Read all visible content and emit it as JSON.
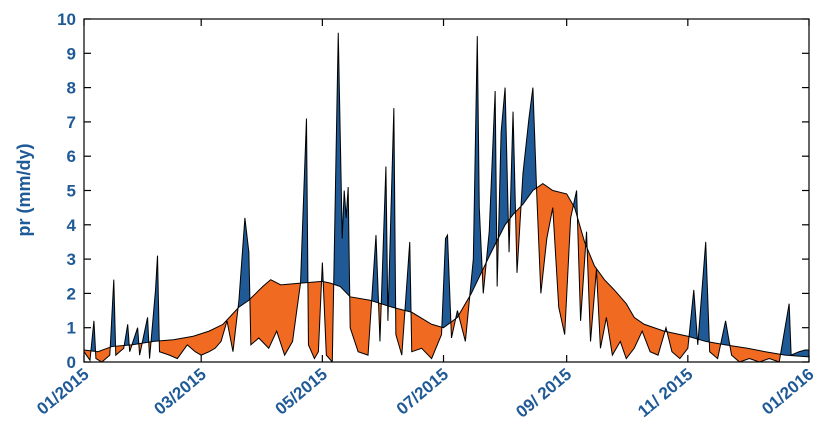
{
  "colors": {
    "above": "#1f5a96",
    "below": "#f06a22",
    "ticks": "#1f5a96",
    "xticks": "#1f5a96",
    "axes": "#000000"
  },
  "chart_data": {
    "type": "area",
    "title": "",
    "xlabel": "",
    "ylabel": "pr (mm/dy)",
    "ylim": [
      0,
      10
    ],
    "yticks": [
      0,
      1,
      2,
      3,
      4,
      5,
      6,
      7,
      8,
      9,
      10
    ],
    "xlim": [
      "2015-01-01",
      "2016-01-01"
    ],
    "xticks": [
      {
        "date": "2015-01-01",
        "label": "01/2015"
      },
      {
        "date": "2015-03-01",
        "label": "03/2015"
      },
      {
        "date": "2015-05-01",
        "label": "05/2015"
      },
      {
        "date": "2015-07-01",
        "label": "07/2015"
      },
      {
        "date": "2015-09-01",
        "label": "09/ 2015"
      },
      {
        "date": "2015-11-01",
        "label": "11/ 2015"
      },
      {
        "date": "2016-01-01",
        "label": "01/2016"
      }
    ],
    "grid": false,
    "series": [
      {
        "role": "climatology",
        "points": [
          [
            "2015-01-01",
            0.35
          ],
          [
            "2015-01-08",
            0.3
          ],
          [
            "2015-01-15",
            0.45
          ],
          [
            "2015-01-25",
            0.5
          ],
          [
            "2015-02-05",
            0.6
          ],
          [
            "2015-02-15",
            0.65
          ],
          [
            "2015-02-25",
            0.75
          ],
          [
            "2015-03-05",
            0.9
          ],
          [
            "2015-03-12",
            1.1
          ],
          [
            "2015-03-20",
            1.6
          ],
          [
            "2015-03-25",
            1.8
          ],
          [
            "2015-04-01",
            2.2
          ],
          [
            "2015-04-05",
            2.4
          ],
          [
            "2015-04-10",
            2.25
          ],
          [
            "2015-04-20",
            2.3
          ],
          [
            "2015-05-01",
            2.35
          ],
          [
            "2015-05-05",
            2.3
          ],
          [
            "2015-05-10",
            2.2
          ],
          [
            "2015-05-15",
            1.9
          ],
          [
            "2015-05-25",
            1.8
          ],
          [
            "2015-06-05",
            1.6
          ],
          [
            "2015-06-15",
            1.45
          ],
          [
            "2015-06-25",
            1.1
          ],
          [
            "2015-07-01",
            1.0
          ],
          [
            "2015-07-08",
            1.3
          ],
          [
            "2015-07-15",
            2.0
          ],
          [
            "2015-07-20",
            2.6
          ],
          [
            "2015-07-25",
            3.2
          ],
          [
            "2015-08-01",
            4.0
          ],
          [
            "2015-08-05",
            4.3
          ],
          [
            "2015-08-10",
            4.6
          ],
          [
            "2015-08-15",
            5.0
          ],
          [
            "2015-08-20",
            5.2
          ],
          [
            "2015-08-25",
            5.0
          ],
          [
            "2015-09-01",
            4.9
          ],
          [
            "2015-09-05",
            4.5
          ],
          [
            "2015-09-10",
            3.5
          ],
          [
            "2015-09-15",
            2.8
          ],
          [
            "2015-09-20",
            2.4
          ],
          [
            "2015-09-25",
            2.1
          ],
          [
            "2015-10-01",
            1.7
          ],
          [
            "2015-10-05",
            1.3
          ],
          [
            "2015-10-10",
            1.1
          ],
          [
            "2015-10-20",
            0.9
          ],
          [
            "2015-11-01",
            0.75
          ],
          [
            "2015-11-10",
            0.6
          ],
          [
            "2015-11-20",
            0.5
          ],
          [
            "2015-12-01",
            0.4
          ],
          [
            "2015-12-10",
            0.3
          ],
          [
            "2015-12-20",
            0.2
          ],
          [
            "2016-01-01",
            0.15
          ]
        ]
      },
      {
        "role": "daily",
        "points": [
          [
            "2015-01-01",
            0.3
          ],
          [
            "2015-01-04",
            0.05
          ],
          [
            "2015-01-06",
            1.2
          ],
          [
            "2015-01-07",
            0.1
          ],
          [
            "2015-01-10",
            0.0
          ],
          [
            "2015-01-14",
            0.2
          ],
          [
            "2015-01-16",
            2.4
          ],
          [
            "2015-01-17",
            0.2
          ],
          [
            "2015-01-21",
            0.4
          ],
          [
            "2015-01-23",
            1.1
          ],
          [
            "2015-01-24",
            0.3
          ],
          [
            "2015-01-28",
            1.0
          ],
          [
            "2015-01-29",
            0.2
          ],
          [
            "2015-02-02",
            1.3
          ],
          [
            "2015-02-03",
            0.1
          ],
          [
            "2015-02-06",
            2.1
          ],
          [
            "2015-02-07",
            3.1
          ],
          [
            "2015-02-08",
            0.3
          ],
          [
            "2015-02-13",
            0.2
          ],
          [
            "2015-02-17",
            0.1
          ],
          [
            "2015-02-22",
            0.5
          ],
          [
            "2015-02-26",
            0.3
          ],
          [
            "2015-03-01",
            0.2
          ],
          [
            "2015-03-05",
            0.3
          ],
          [
            "2015-03-08",
            0.4
          ],
          [
            "2015-03-11",
            0.6
          ],
          [
            "2015-03-14",
            1.2
          ],
          [
            "2015-03-17",
            0.3
          ],
          [
            "2015-03-20",
            1.8
          ],
          [
            "2015-03-23",
            4.2
          ],
          [
            "2015-03-25",
            3.2
          ],
          [
            "2015-03-26",
            0.5
          ],
          [
            "2015-03-30",
            0.7
          ],
          [
            "2015-04-04",
            0.4
          ],
          [
            "2015-04-08",
            0.9
          ],
          [
            "2015-04-12",
            0.2
          ],
          [
            "2015-04-16",
            0.6
          ],
          [
            "2015-04-20",
            2.3
          ],
          [
            "2015-04-23",
            7.1
          ],
          [
            "2015-04-24",
            0.5
          ],
          [
            "2015-04-27",
            0.1
          ],
          [
            "2015-04-29",
            0.3
          ],
          [
            "2015-05-01",
            2.9
          ],
          [
            "2015-05-03",
            0.2
          ],
          [
            "2015-05-06",
            0.0
          ],
          [
            "2015-05-09",
            9.6
          ],
          [
            "2015-05-11",
            3.6
          ],
          [
            "2015-05-12",
            5.0
          ],
          [
            "2015-05-13",
            4.2
          ],
          [
            "2015-05-14",
            5.1
          ],
          [
            "2015-05-15",
            1.0
          ],
          [
            "2015-05-19",
            0.3
          ],
          [
            "2015-05-24",
            0.2
          ],
          [
            "2015-05-28",
            3.7
          ],
          [
            "2015-05-30",
            0.6
          ],
          [
            "2015-06-02",
            5.7
          ],
          [
            "2015-06-03",
            1.2
          ],
          [
            "2015-06-06",
            7.4
          ],
          [
            "2015-06-07",
            0.8
          ],
          [
            "2015-06-10",
            0.2
          ],
          [
            "2015-06-14",
            3.5
          ],
          [
            "2015-06-15",
            0.3
          ],
          [
            "2015-06-20",
            0.4
          ],
          [
            "2015-06-25",
            0.1
          ],
          [
            "2015-06-30",
            0.8
          ],
          [
            "2015-07-02",
            3.6
          ],
          [
            "2015-07-03",
            3.7
          ],
          [
            "2015-07-05",
            0.7
          ],
          [
            "2015-07-08",
            1.5
          ],
          [
            "2015-07-12",
            0.6
          ],
          [
            "2015-07-16",
            3.0
          ],
          [
            "2015-07-18",
            9.5
          ],
          [
            "2015-07-19",
            4.5
          ],
          [
            "2015-07-21",
            2.0
          ],
          [
            "2015-07-24",
            3.8
          ],
          [
            "2015-07-27",
            7.9
          ],
          [
            "2015-07-28",
            2.2
          ],
          [
            "2015-07-30",
            6.7
          ],
          [
            "2015-08-01",
            8.0
          ],
          [
            "2015-08-03",
            3.2
          ],
          [
            "2015-08-05",
            7.3
          ],
          [
            "2015-08-07",
            2.6
          ],
          [
            "2015-08-10",
            5.5
          ],
          [
            "2015-08-13",
            7.1
          ],
          [
            "2015-08-15",
            8.0
          ],
          [
            "2015-08-17",
            4.8
          ],
          [
            "2015-08-19",
            2.0
          ],
          [
            "2015-08-22",
            3.6
          ],
          [
            "2015-08-25",
            4.5
          ],
          [
            "2015-08-28",
            1.6
          ],
          [
            "2015-08-31",
            0.8
          ],
          [
            "2015-09-03",
            4.2
          ],
          [
            "2015-09-06",
            5.0
          ],
          [
            "2015-09-08",
            1.2
          ],
          [
            "2015-09-11",
            3.8
          ],
          [
            "2015-09-13",
            0.6
          ],
          [
            "2015-09-16",
            2.7
          ],
          [
            "2015-09-18",
            0.4
          ],
          [
            "2015-09-21",
            1.3
          ],
          [
            "2015-09-24",
            0.2
          ],
          [
            "2015-09-28",
            0.6
          ],
          [
            "2015-10-01",
            0.1
          ],
          [
            "2015-10-05",
            0.4
          ],
          [
            "2015-10-09",
            0.9
          ],
          [
            "2015-10-13",
            0.3
          ],
          [
            "2015-10-17",
            0.2
          ],
          [
            "2015-10-21",
            1.0
          ],
          [
            "2015-10-24",
            0.3
          ],
          [
            "2015-10-28",
            0.1
          ],
          [
            "2015-11-01",
            0.4
          ],
          [
            "2015-11-04",
            2.1
          ],
          [
            "2015-11-06",
            0.5
          ],
          [
            "2015-11-10",
            3.5
          ],
          [
            "2015-11-12",
            0.3
          ],
          [
            "2015-11-16",
            0.1
          ],
          [
            "2015-11-20",
            1.2
          ],
          [
            "2015-11-23",
            0.2
          ],
          [
            "2015-11-27",
            0.0
          ],
          [
            "2015-12-02",
            0.1
          ],
          [
            "2015-12-07",
            0.0
          ],
          [
            "2015-12-12",
            0.1
          ],
          [
            "2015-12-17",
            0.0
          ],
          [
            "2015-12-22",
            1.7
          ],
          [
            "2015-12-23",
            0.2
          ],
          [
            "2015-12-27",
            0.3
          ],
          [
            "2015-12-30",
            0.35
          ],
          [
            "2016-01-01",
            0.35
          ]
        ]
      }
    ]
  }
}
